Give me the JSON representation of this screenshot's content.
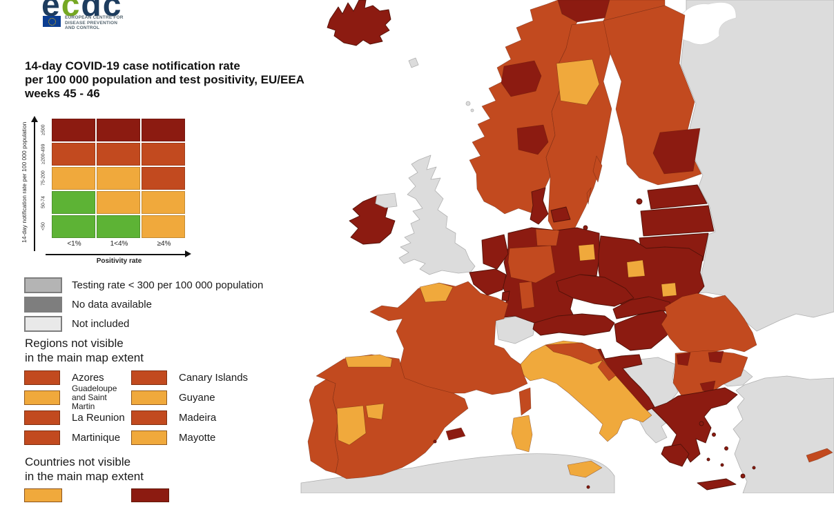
{
  "logo": {
    "letters": [
      {
        "ch": "e",
        "color": "logo_navy"
      },
      {
        "ch": "c",
        "color": "logo_green"
      },
      {
        "ch": "d",
        "color": "logo_navy"
      },
      {
        "ch": "c",
        "color": "logo_navy"
      }
    ],
    "org_line1": "EUROPEAN CENTRE FOR",
    "org_line2": "DISEASE PREVENTION",
    "org_line3": "AND CONTROL"
  },
  "title": {
    "line1": "14-day COVID-19 case notification rate",
    "line2": "per 100 000 population and test positivity, EU/EEA",
    "line3": "weeks 45 - 46"
  },
  "matrix_legend": {
    "y_axis_label": "14-day notification rate per 100 000 population",
    "x_axis_label": "Positivity rate",
    "row_labels": [
      "≥500",
      "≥200-499",
      "75-200",
      "50-74",
      "<50"
    ],
    "col_labels": [
      "<1%",
      "1<4%",
      "≥4%"
    ],
    "cells": [
      [
        "darkred",
        "darkred",
        "darkred"
      ],
      [
        "red",
        "red",
        "red"
      ],
      [
        "orange",
        "orange",
        "red"
      ],
      [
        "green",
        "orange",
        "orange"
      ],
      [
        "green",
        "green",
        "orange"
      ]
    ]
  },
  "colors": {
    "darkred": "#8c1b11",
    "red": "#c24a1f",
    "orange": "#f0a93c",
    "green": "#5db335",
    "testing_gray": "#b4b4b4",
    "nodata_gray": "#7e7e7e",
    "notincluded_gray": "#e9e9e9",
    "map_gray": "#dcdcdc",
    "logo_navy": "#1d3c5e",
    "logo_green": "#76a823"
  },
  "status_legend": [
    {
      "color_key": "testing_gray",
      "label": "Testing rate < 300 per 100 000 population"
    },
    {
      "color_key": "nodata_gray",
      "label": "No data available"
    },
    {
      "color_key": "notincluded_gray",
      "label": "Not included"
    }
  ],
  "regions_section": {
    "header_line1": "Regions not visible",
    "header_line2": "in the main map extent",
    "items": [
      {
        "label": "Azores",
        "color_key": "red"
      },
      {
        "label": "Canary Islands",
        "color_key": "red"
      },
      {
        "label": "Guadeloupe\nand Saint Martin",
        "color_key": "orange"
      },
      {
        "label": "Guyane",
        "color_key": "orange"
      },
      {
        "label": "La Reunion",
        "color_key": "red"
      },
      {
        "label": "Madeira",
        "color_key": "red"
      },
      {
        "label": "Martinique",
        "color_key": "red"
      },
      {
        "label": "Mayotte",
        "color_key": "orange"
      }
    ]
  },
  "countries_section": {
    "header_line1": "Countries not visible",
    "header_line2": "in the main map extent",
    "items": [
      {
        "label": "",
        "color_key": "orange"
      },
      {
        "label": "",
        "color_key": "darkred"
      }
    ]
  },
  "map_regions": {
    "iceland": "darkred",
    "faroe_islands": "map_gray",
    "shetland": "map_gray",
    "united_kingdom": "map_gray",
    "northern_ireland": "map_gray",
    "ireland": "darkred",
    "norway": "red",
    "norway_trondelag": "darkred",
    "norway_oslo_area": "darkred",
    "norway_north_dark": "darkred",
    "norway_north_red": "red",
    "sweden": "red",
    "sweden_jamtland": "orange",
    "gotland": "red",
    "oland": "red",
    "finland": "red",
    "finland_southeast": "darkred",
    "estonia": "darkred",
    "latvia": "darkred",
    "lithuania": "darkred",
    "kaliningrad": "map_gray",
    "denmark": "darkred",
    "bornholm": "darkred",
    "germany": "darkred",
    "germany_schleswig": "red",
    "germany_northwest": "red",
    "germany_central": "red",
    "germany_berlin_area": "orange",
    "netherlands": "darkred",
    "belgium": "darkred",
    "luxembourg": "darkred",
    "poland": "darkred",
    "poland_west_patch": "orange",
    "poland_north_patch": "orange",
    "czechia": "darkred",
    "slovakia": "darkred",
    "austria": "darkred",
    "hungary": "darkred",
    "slovenia_croatia": "darkred",
    "west_balkans": "map_gray",
    "romania": "red",
    "bulgaria": "red",
    "bulgaria_dark_patch": "darkred",
    "greece": "darkred",
    "aegean_islands": "darkred",
    "italy": "orange",
    "italy_north": "red",
    "italy_adriatic": "red",
    "corsica": "red",
    "sardinia": "orange",
    "sicily": "orange",
    "malta": "darkred",
    "france": "red",
    "france_normandy": "orange",
    "switzerland": "map_gray",
    "spain": "red",
    "spain_north_coast": "orange",
    "spain_extremadura": "orange",
    "spain_madrid": "orange",
    "balearics": "darkred",
    "ibiza": "darkred",
    "portugal": "red",
    "cyprus": "red",
    "russia_belarus_ukraine": "map_gray",
    "turkey_thrace": "map_gray",
    "turkey": "map_gray",
    "north_africa": "map_gray",
    "white_sea": "white"
  }
}
